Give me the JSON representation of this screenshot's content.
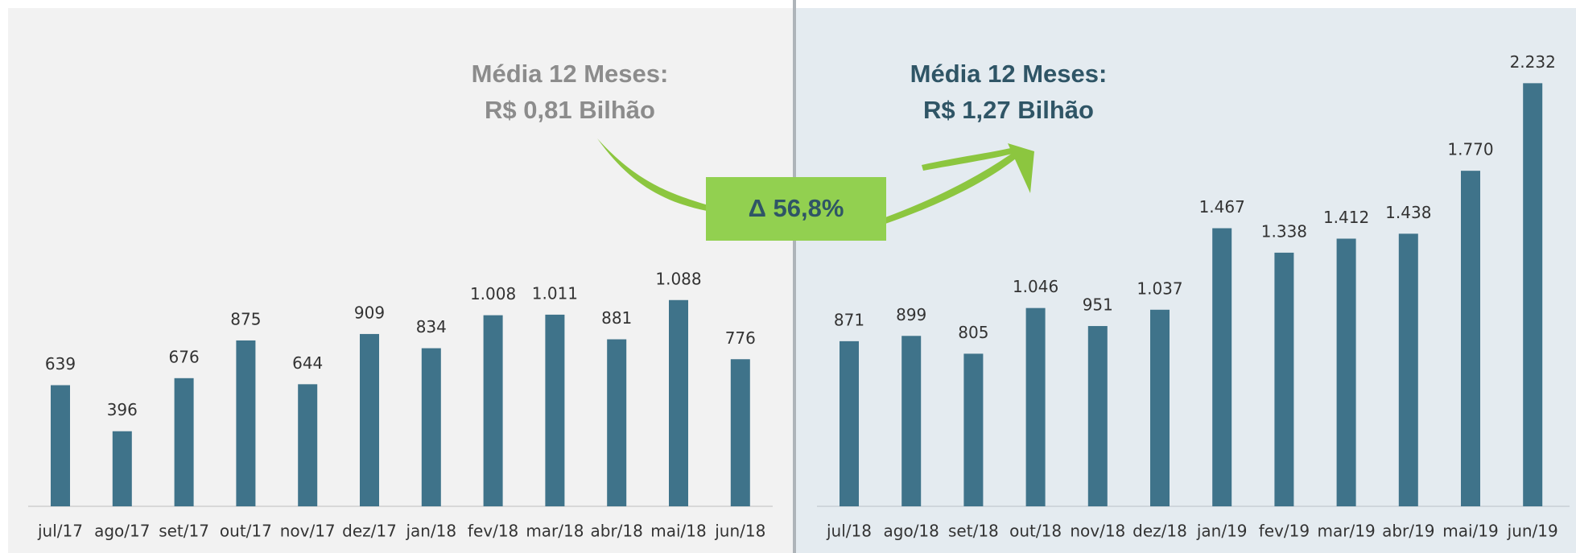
{
  "chart_data": [
    {
      "type": "bar",
      "color": "#3f738a",
      "categories": [
        "jul/17",
        "ago/17",
        "set/17",
        "out/17",
        "nov/17",
        "dez/17",
        "jan/18",
        "fev/18",
        "mar/18",
        "abr/18",
        "mai/18",
        "jun/18"
      ],
      "values": [
        639,
        396,
        676,
        875,
        644,
        909,
        834,
        1008,
        1011,
        881,
        1088,
        776
      ],
      "value_labels": [
        "639",
        "396",
        "676",
        "875",
        "644",
        "909",
        "834",
        "1.008",
        "1.011",
        "881",
        "1.088",
        "776"
      ],
      "annotation": [
        "Média 12 Meses:",
        "R$ 0,81 Bilhão"
      ]
    },
    {
      "type": "bar",
      "color": "#3f738a",
      "categories": [
        "jul/18",
        "ago/18",
        "set/18",
        "out/18",
        "nov/18",
        "dez/18",
        "jan/19",
        "fev/19",
        "mar/19",
        "abr/19",
        "mai/19",
        "jun/19"
      ],
      "values": [
        871,
        899,
        805,
        1046,
        951,
        1037,
        1467,
        1338,
        1412,
        1438,
        1770,
        2232
      ],
      "value_labels": [
        "871",
        "899",
        "805",
        "1.046",
        "951",
        "1.037",
        "1.467",
        "1.338",
        "1.412",
        "1.438",
        "1.770",
        "2.232"
      ],
      "annotation": [
        "Média 12 Meses:",
        "R$ 1,27 Bilhão"
      ]
    }
  ],
  "change": "Δ 56,8%"
}
